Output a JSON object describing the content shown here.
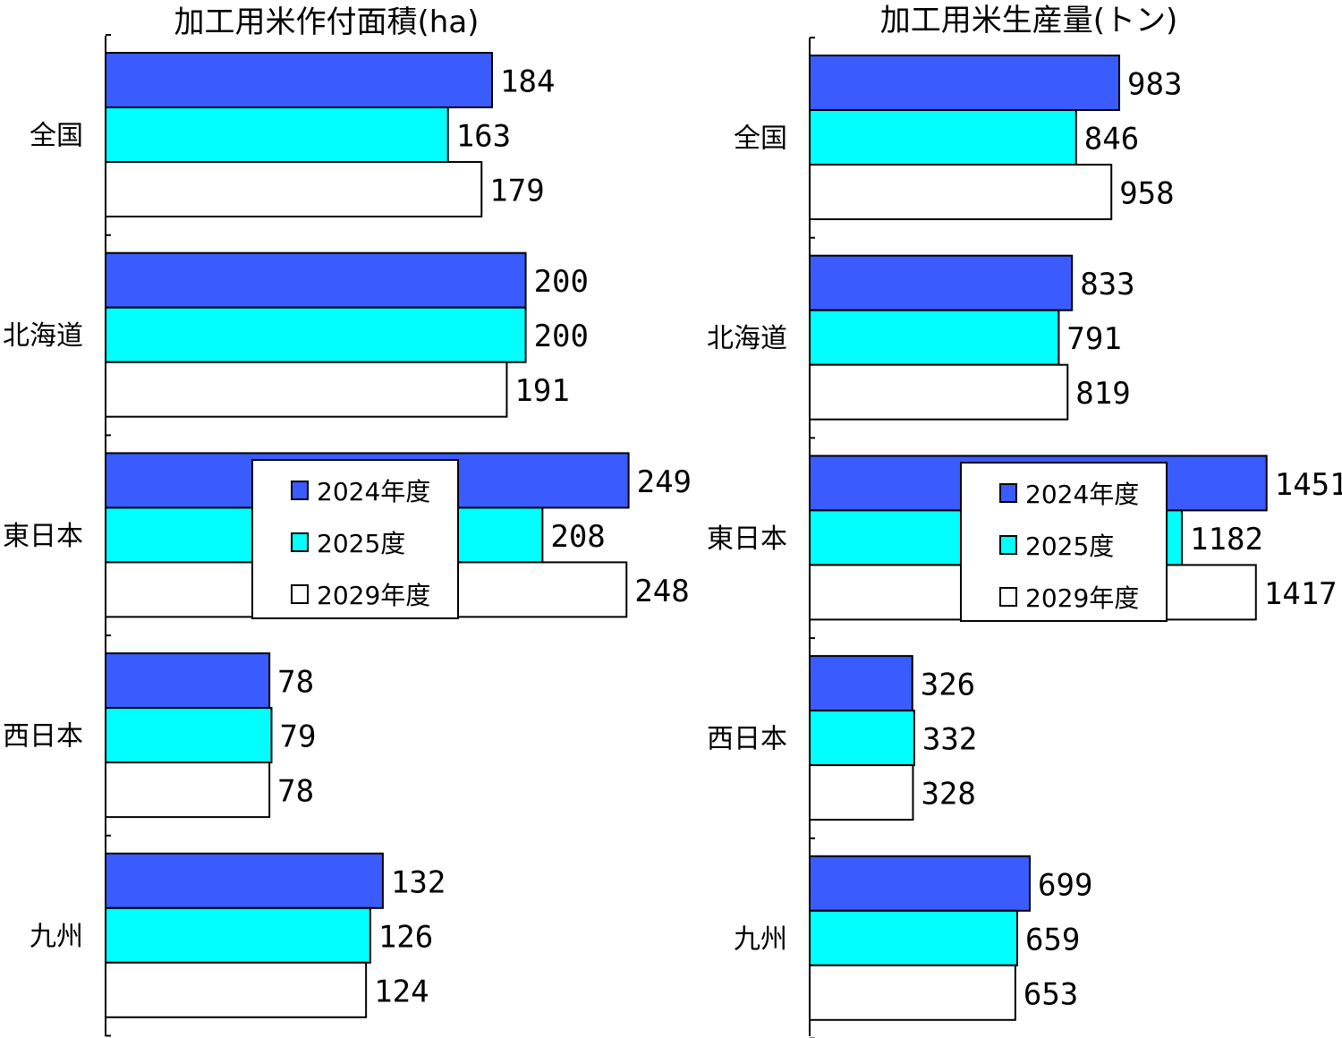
{
  "chart_data": [
    {
      "type": "bar",
      "orientation": "horizontal",
      "title": "加工用米作付面積(ha)",
      "categories": [
        "全国",
        "北海道",
        "東日本",
        "西日本",
        "九州"
      ],
      "series": [
        {
          "name": "2024年度",
          "color": "#3a5cff",
          "values": [
            184,
            200,
            249,
            78,
            132
          ]
        },
        {
          "name": "2025度",
          "color": "#00ffff",
          "values": [
            163,
            200,
            208,
            79,
            126
          ]
        },
        {
          "name": "2029年度",
          "color": "#ffffff",
          "values": [
            179,
            191,
            248,
            78,
            124
          ]
        }
      ],
      "legend_position": "center"
    },
    {
      "type": "bar",
      "orientation": "horizontal",
      "title": "加工用米生産量(トン)",
      "categories": [
        "全国",
        "北海道",
        "東日本",
        "西日本",
        "九州"
      ],
      "series": [
        {
          "name": "2024年度",
          "color": "#3a5cff",
          "values": [
            983,
            833,
            1451,
            326,
            699
          ]
        },
        {
          "name": "2025度",
          "color": "#00ffff",
          "values": [
            846,
            791,
            1182,
            332,
            659
          ]
        },
        {
          "name": "2029年度",
          "color": "#ffffff",
          "values": [
            958,
            819,
            1417,
            328,
            653
          ]
        }
      ],
      "legend_position": "center"
    }
  ]
}
